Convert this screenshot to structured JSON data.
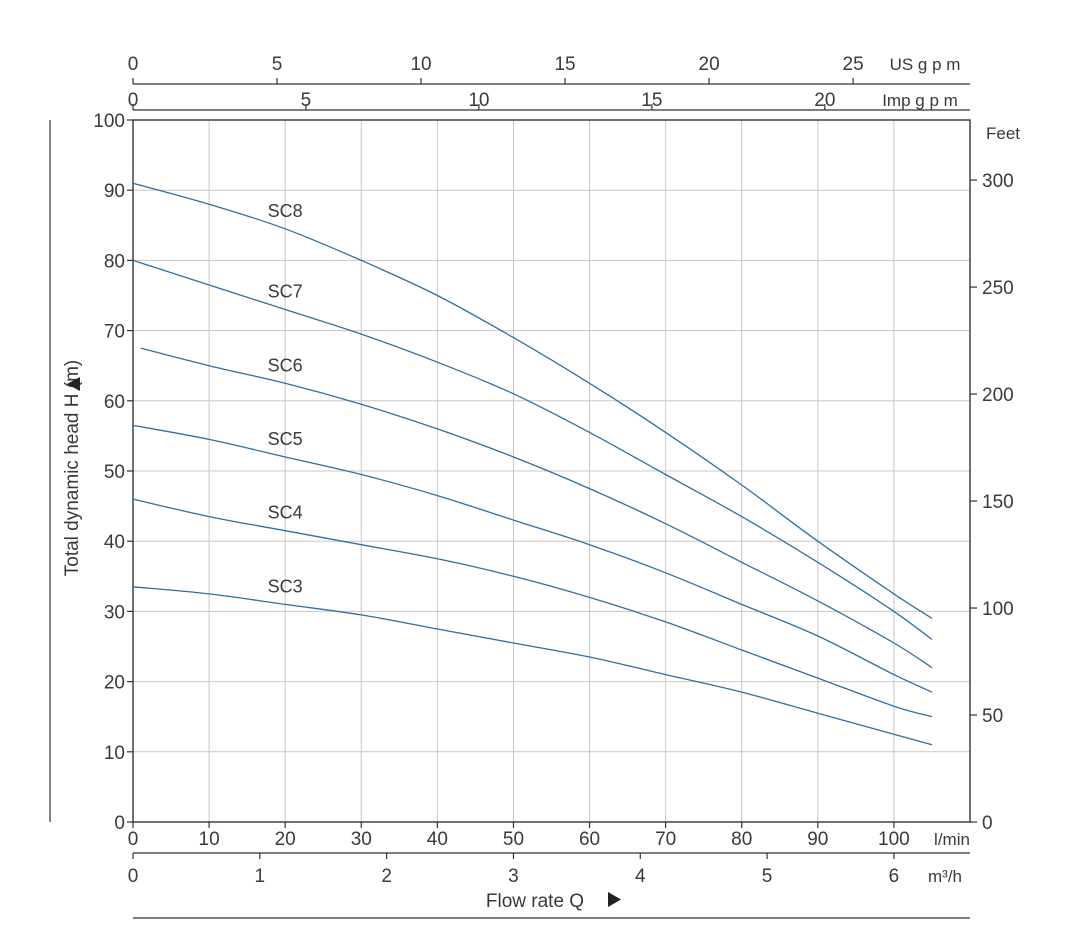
{
  "chart_data": {
    "type": "line",
    "title": "",
    "x": [
      0,
      10,
      20,
      30,
      40,
      50,
      60,
      70,
      80,
      90,
      100,
      105
    ],
    "xlim": [
      0,
      110
    ],
    "ylim": [
      0,
      100
    ],
    "xlabel": "Flow rate Q",
    "ylabel": "Total dynamic head H (m)",
    "grid": true,
    "x_unit": "l/min",
    "x_ticks": [
      "0",
      "10",
      "20",
      "30",
      "40",
      "50",
      "60",
      "70",
      "80",
      "90",
      "100"
    ],
    "y_ticks": [
      "0",
      "10",
      "20",
      "30",
      "40",
      "50",
      "60",
      "70",
      "80",
      "90",
      "100"
    ],
    "secondary_axes": {
      "bottom_m3h": {
        "unit": "m³/h",
        "ticks": [
          "0",
          "1",
          "2",
          "3",
          "4",
          "5",
          "6"
        ]
      },
      "top_usgpm": {
        "unit": "US g p m",
        "ticks": [
          "0",
          "5",
          "10",
          "15",
          "20",
          "25"
        ]
      },
      "top_impgpm": {
        "unit": "Imp g p m",
        "ticks": [
          "0",
          "5",
          "10",
          "15",
          "20"
        ]
      },
      "right_feet": {
        "unit": "Feet",
        "ticks": [
          "0",
          "50",
          "100",
          "150",
          "200",
          "250",
          "300"
        ]
      }
    },
    "series": [
      {
        "name": "SC8",
        "color": "#2f6fa6",
        "x": [
          0,
          10,
          20,
          30,
          40,
          50,
          60,
          70,
          80,
          90,
          100,
          105
        ],
        "values": [
          91.0,
          88.0,
          84.5,
          80.0,
          75.0,
          69.0,
          62.5,
          55.5,
          48.0,
          40.0,
          32.5,
          29.0
        ]
      },
      {
        "name": "SC7",
        "color": "#2f6fa6",
        "x": [
          0,
          10,
          20,
          30,
          40,
          50,
          60,
          70,
          80,
          90,
          100,
          105
        ],
        "values": [
          80.0,
          76.5,
          73.0,
          69.5,
          65.5,
          61.0,
          55.5,
          49.5,
          43.5,
          37.0,
          30.0,
          26.0
        ]
      },
      {
        "name": "SC6",
        "color": "#2f6fa6",
        "x": [
          1,
          10,
          20,
          30,
          40,
          50,
          60,
          70,
          80,
          90,
          100,
          105
        ],
        "values": [
          67.5,
          65.0,
          62.5,
          59.5,
          56.0,
          52.0,
          47.5,
          42.5,
          37.0,
          31.5,
          25.5,
          22.0
        ]
      },
      {
        "name": "SC5",
        "color": "#2f6fa6",
        "x": [
          0,
          10,
          20,
          30,
          40,
          50,
          60,
          70,
          80,
          90,
          100,
          105
        ],
        "values": [
          56.5,
          54.5,
          52.0,
          49.5,
          46.5,
          43.0,
          39.5,
          35.5,
          31.0,
          26.5,
          21.0,
          18.5
        ]
      },
      {
        "name": "SC4",
        "color": "#2f6fa6",
        "x": [
          0,
          10,
          20,
          30,
          40,
          50,
          60,
          70,
          80,
          90,
          100,
          105
        ],
        "values": [
          46.0,
          43.5,
          41.5,
          39.5,
          37.5,
          35.0,
          32.0,
          28.5,
          24.5,
          20.5,
          16.5,
          15.0
        ]
      },
      {
        "name": "SC3",
        "color": "#2f6fa6",
        "x": [
          0,
          10,
          20,
          30,
          40,
          50,
          60,
          70,
          80,
          90,
          100,
          105
        ],
        "values": [
          33.5,
          32.5,
          31.0,
          29.5,
          27.5,
          25.5,
          23.5,
          21.0,
          18.5,
          15.5,
          12.5,
          11.0
        ]
      }
    ]
  }
}
